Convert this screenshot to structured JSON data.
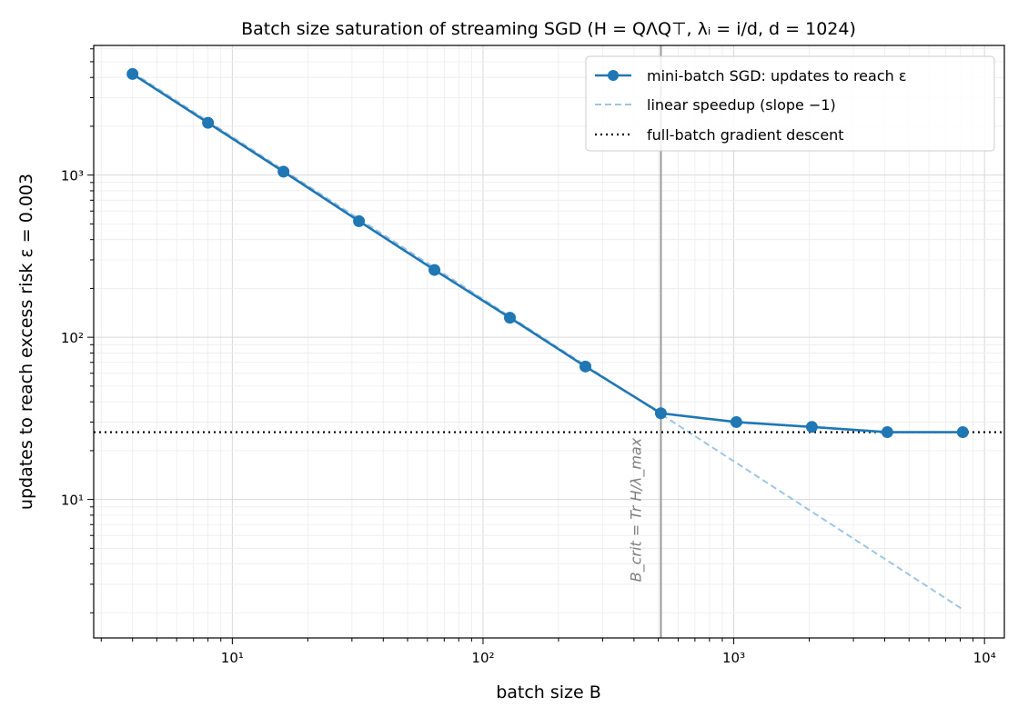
{
  "chart_data": {
    "type": "line",
    "title": "Batch size saturation of streaming SGD (H = QΛQ⊤, λᵢ = i/d, d = 1024)",
    "xlabel": "batch size B",
    "ylabel": "updates to reach excess risk ε = 0.003",
    "x_scale": "log",
    "y_scale": "log",
    "xlim": [
      2.8,
      12000
    ],
    "ylim": [
      1.4,
      6300
    ],
    "grid": true,
    "legend_position": "top-right",
    "x_ticks": [
      {
        "value": 10,
        "label": "10¹"
      },
      {
        "value": 100,
        "label": "10²"
      },
      {
        "value": 1000,
        "label": "10³"
      },
      {
        "value": 10000,
        "label": "10⁴"
      }
    ],
    "y_ticks": [
      {
        "value": 10,
        "label": "10¹"
      },
      {
        "value": 100,
        "label": "10²"
      },
      {
        "value": 1000,
        "label": "10³"
      }
    ],
    "series": [
      {
        "name": "mini-batch SGD: updates to reach ε",
        "style": "solid-markers",
        "color": "#1f77b4",
        "x": [
          4,
          8,
          16,
          32,
          64,
          128,
          256,
          512,
          1024,
          2048,
          4096,
          8192
        ],
        "y": [
          4200,
          2100,
          1050,
          520,
          260,
          132,
          66,
          34,
          30,
          28,
          26,
          26
        ]
      },
      {
        "name": "linear speedup (slope −1)",
        "style": "dashed",
        "color": "#9ec5e3",
        "x": [
          4,
          8192
        ],
        "y": [
          4300,
          2.1
        ]
      },
      {
        "name": "full-batch gradient descent",
        "style": "dotted",
        "color": "#000000",
        "y_value": 26
      }
    ],
    "annotations": [
      {
        "type": "vline",
        "x": 512,
        "color": "#999999",
        "label": "B_crit = Tr H/λ_max"
      }
    ]
  }
}
